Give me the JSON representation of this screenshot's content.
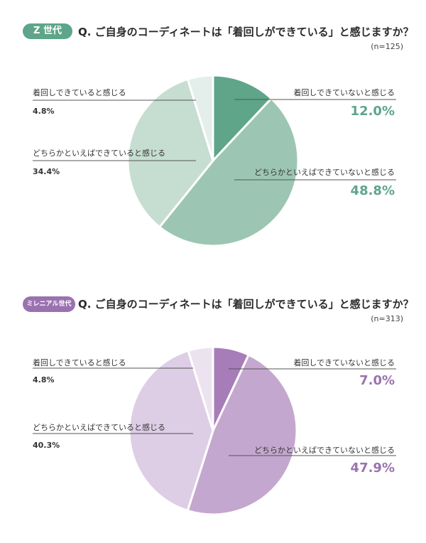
{
  "colors": {
    "gen_z_accent": "#5ea58a",
    "gen_z_slices": [
      "#5ea58a",
      "#9cc6b3",
      "#c6ddd2",
      "#e4eeea"
    ],
    "millennial_accent": "#9b72b0",
    "millennial_slices": [
      "#a77db9",
      "#c4a7cf",
      "#ddcde5",
      "#ece3f1"
    ],
    "leader_line": "#555555"
  },
  "question": "Q. ご自身のコーディネートは「着回しができている」と感じますか？",
  "chart_data": [
    {
      "type": "pie",
      "group_badge": "Z 世代",
      "sample": "(n=125)",
      "slices": [
        {
          "label": "着回しできていないと感じる",
          "value": 12.0,
          "display": "12.0%"
        },
        {
          "label": "どちらかといえばできていないと感じる",
          "value": 48.8,
          "display": "48.8%"
        },
        {
          "label": "どちらかといえばできていると感じる",
          "value": 34.4,
          "display": "34.4%"
        },
        {
          "label": "着回しできていると感じる",
          "value": 4.8,
          "display": "4.8%"
        }
      ]
    },
    {
      "type": "pie",
      "group_badge": "ミレニアル世代",
      "sample": "(n=313)",
      "slices": [
        {
          "label": "着回しできていないと感じる",
          "value": 7.0,
          "display": "7.0%"
        },
        {
          "label": "どちらかといえばできていないと感じる",
          "value": 47.9,
          "display": "47.9%"
        },
        {
          "label": "どちらかといえばできていると感じる",
          "value": 40.3,
          "display": "40.3%"
        },
        {
          "label": "着回しできていると感じる",
          "value": 4.8,
          "display": "4.8%"
        }
      ]
    }
  ]
}
